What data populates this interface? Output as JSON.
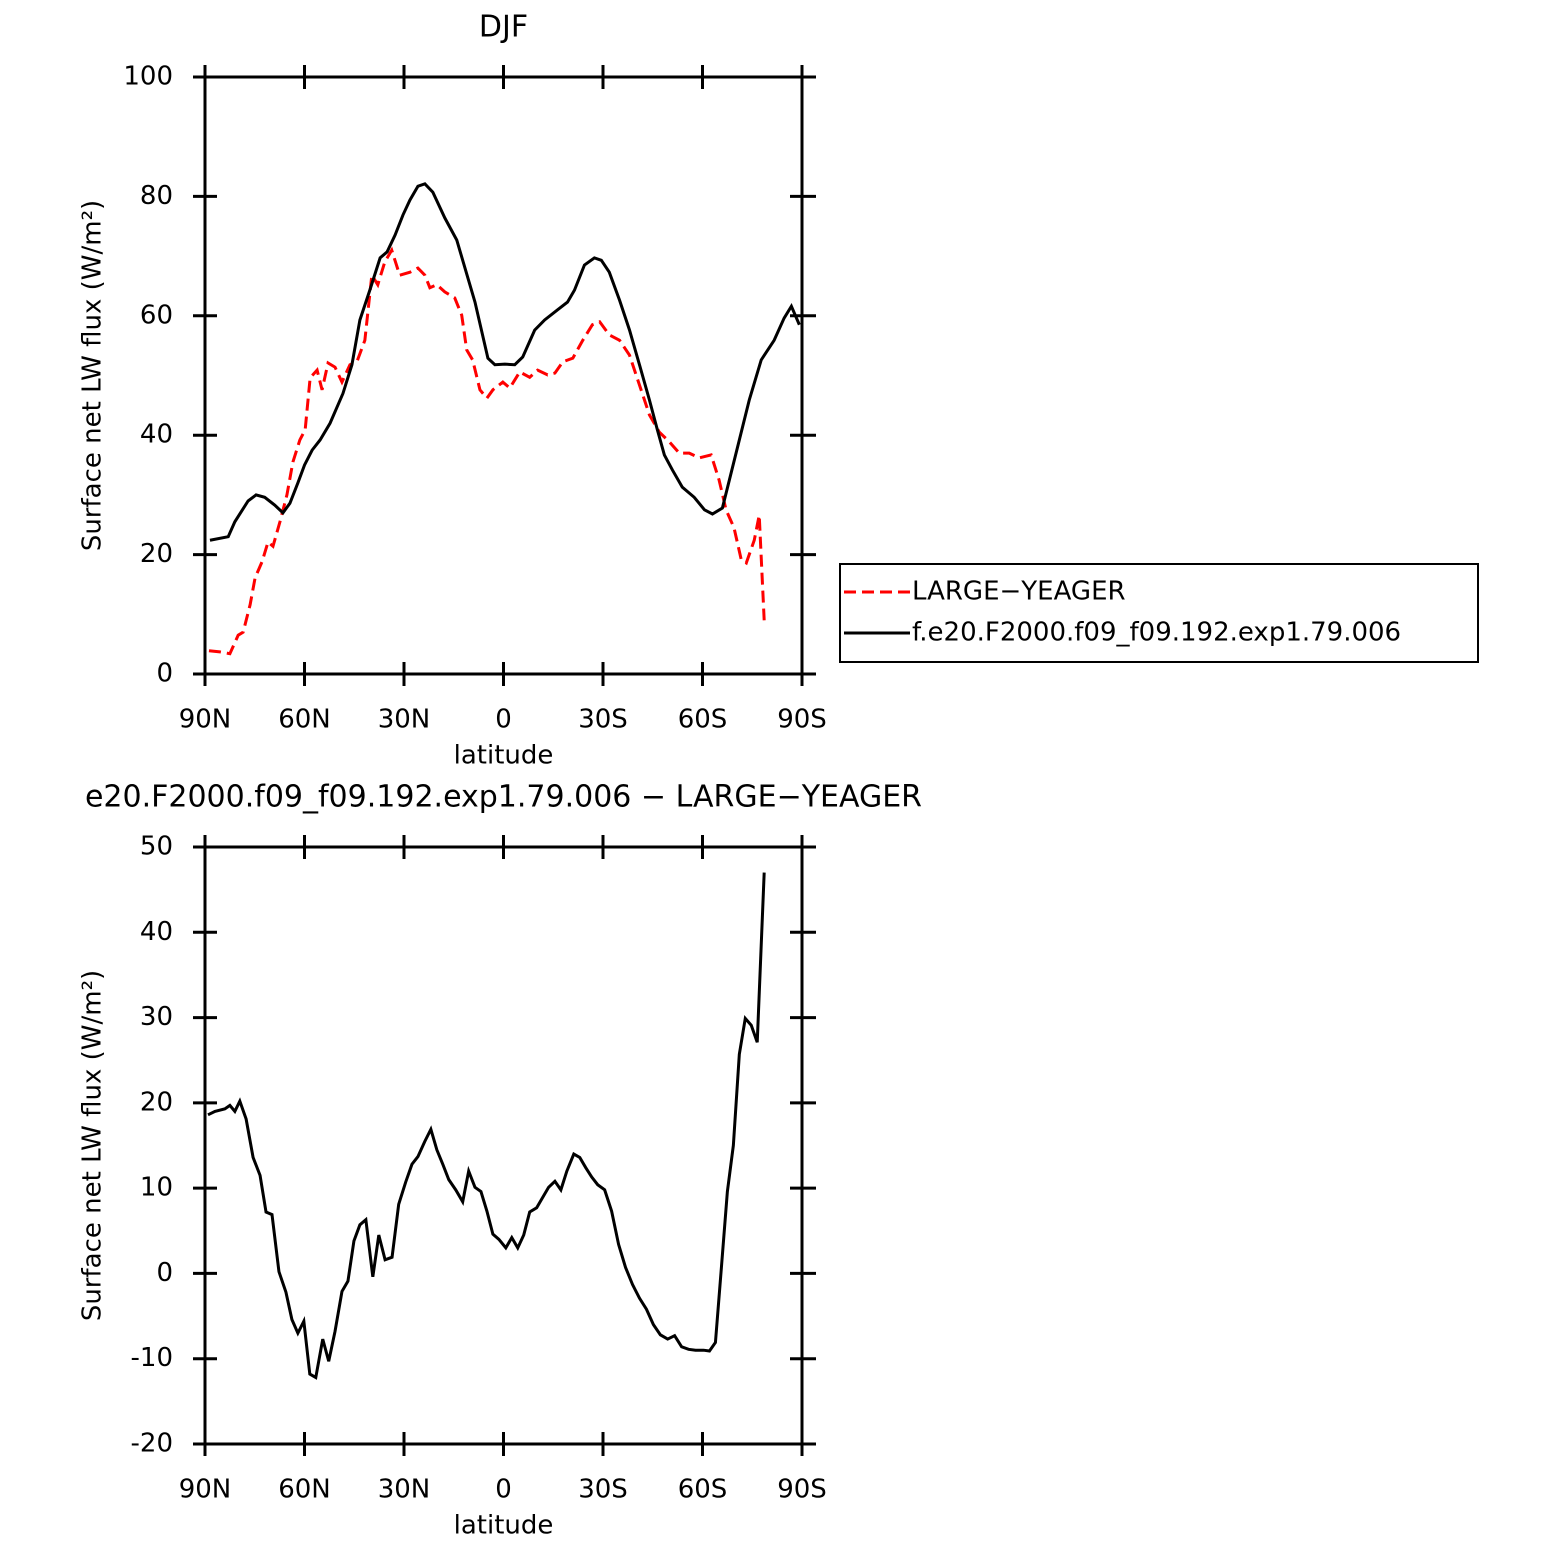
{
  "chart_data": [
    {
      "type": "line",
      "title": "DJF",
      "xlabel": "latitude",
      "ylabel": "Surface net LW flux (W/m²)",
      "xlim": [
        90,
        -90
      ],
      "xticks": [
        {
          "value": 90,
          "label": "90N"
        },
        {
          "value": 60,
          "label": "60N"
        },
        {
          "value": 30,
          "label": "30N"
        },
        0,
        {
          "value": -30,
          "label": "30S"
        },
        {
          "value": -60,
          "label": "60S"
        },
        {
          "value": -90,
          "label": "90S"
        }
      ],
      "ylim": [
        0,
        100
      ],
      "yticks": [
        0,
        20,
        40,
        60,
        80,
        100
      ],
      "legend": "right",
      "series": [
        {
          "name": "LARGE−YEAGER",
          "color": "#ff0000",
          "linestyle": "dashed",
          "x": [
            88.8,
            85.5,
            82.5,
            80,
            78.5,
            76.4,
            74.9,
            72.8,
            71,
            69.5,
            67.4,
            65.3,
            63.5,
            61.4,
            59.8,
            58.3,
            56.2,
            54.7,
            52.9,
            50.8,
            48.7,
            46.3,
            44.2,
            41.8,
            39.7,
            37.9,
            35.8,
            33.7,
            31.3,
            28.2,
            25.8,
            23.7,
            22.2,
            20.1,
            17.7,
            14.7,
            12.6,
            11.1,
            9.3,
            7.1,
            5,
            3.2,
            0.2,
            -1.9,
            -4.9,
            -7.9,
            -10.3,
            -13.3,
            -15.5,
            -17.9,
            -20.9,
            -23.9,
            -26.8,
            -29,
            -31.9,
            -35,
            -38,
            -41,
            -44,
            -47,
            -50,
            -53,
            -56,
            -59,
            -62.6,
            -65,
            -67.1,
            -69.5,
            -71.7,
            -73.2,
            -75.6,
            -77.1,
            -78.6
          ],
          "values": [
            3.9,
            3.7,
            3.4,
            6.5,
            7,
            11.6,
            16.1,
            18.8,
            22.1,
            21.4,
            25.5,
            30,
            35.5,
            39.2,
            40.9,
            49.6,
            50.9,
            47.6,
            52.1,
            51.4,
            48.9,
            51.8,
            52.3,
            55.9,
            66.8,
            65.2,
            69,
            71,
            66.8,
            67.3,
            68,
            66.8,
            64.7,
            65.2,
            64,
            63,
            60.1,
            54.3,
            52.6,
            47.6,
            46.2,
            47.6,
            48.9,
            47.9,
            50.6,
            49.7,
            50.9,
            50.1,
            50.4,
            52.3,
            52.9,
            55.9,
            58.5,
            59,
            56.8,
            55.9,
            53.4,
            48.4,
            43.4,
            40.5,
            38.9,
            37,
            37,
            36.2,
            36.7,
            32.5,
            27.5,
            24.5,
            19.1,
            18.6,
            22.4,
            26.6,
            9
          ]
        },
        {
          "name": "f.e20.F2000.f09_f09.192.exp1.79.006",
          "color": "#000000",
          "linestyle": "solid",
          "x": [
            88.5,
            83,
            81,
            77,
            74.6,
            72,
            69,
            66.5,
            64.4,
            62,
            60,
            57.7,
            55.3,
            52.3,
            48.4,
            45.7,
            43.3,
            40.3,
            37.2,
            35.1,
            32.7,
            30.3,
            28.2,
            25.8,
            23.7,
            21.3,
            17.7,
            14.1,
            8.6,
            4.7,
            2.6,
            -0.4,
            -3.4,
            -5.8,
            -9.4,
            -12.4,
            -16.3,
            -19.3,
            -21.4,
            -24.4,
            -27.4,
            -29.5,
            -31.9,
            -35,
            -38,
            -41,
            -44,
            -46.4,
            -48.5,
            -50.9,
            -53.9,
            -57.5,
            -60.6,
            -63,
            -66,
            -68.1,
            -71.1,
            -74.1,
            -77.7,
            -81.6,
            -84.6,
            -86.8,
            -89.2
          ],
          "values": [
            22.4,
            23,
            25.5,
            29,
            30,
            29.6,
            28.3,
            27,
            28.6,
            32,
            35,
            37.5,
            39.2,
            42,
            47,
            51.8,
            59.3,
            64.3,
            69.7,
            70.7,
            73.5,
            76.9,
            79.4,
            81.7,
            82.1,
            80.7,
            76.4,
            72.7,
            62.3,
            52.9,
            51.8,
            51.9,
            51.8,
            53.1,
            57.6,
            59.3,
            61,
            62.3,
            64.3,
            68.5,
            69.7,
            69.3,
            67.3,
            62.6,
            57.6,
            51.8,
            45.9,
            40.9,
            36.7,
            34.2,
            31.3,
            29.6,
            27.5,
            26.8,
            27.8,
            32.5,
            39.2,
            45.9,
            52.6,
            55.9,
            59.6,
            61.6,
            58.5
          ]
        }
      ]
    },
    {
      "type": "line",
      "title": "e20.F2000.f09_f09.192.exp1.79.006 − LARGE−YEAGER",
      "xlabel": "latitude",
      "ylabel": "Surface net LW flux (W/m²)",
      "xlim": [
        90,
        -90
      ],
      "xticks": [
        {
          "value": 90,
          "label": "90N"
        },
        {
          "value": 60,
          "label": "60N"
        },
        {
          "value": 30,
          "label": "30N"
        },
        0,
        {
          "value": -30,
          "label": "30S"
        },
        {
          "value": -60,
          "label": "60S"
        },
        {
          "value": -90,
          "label": "90S"
        }
      ],
      "ylim": [
        -20,
        50
      ],
      "yticks": [
        -20,
        -10,
        0,
        10,
        20,
        30,
        40,
        50
      ],
      "series": [
        {
          "color": "#000000",
          "linestyle": "solid",
          "x": [
            89.1,
            87,
            84,
            82.5,
            81,
            79.5,
            77.6,
            75.5,
            73.4,
            71.6,
            69.8,
            67.7,
            65.6,
            63.8,
            62,
            60.2,
            58.4,
            56.6,
            54.5,
            52.7,
            50.8,
            48.7,
            46.9,
            45.1,
            43.3,
            41.5,
            39.4,
            37.6,
            35.7,
            33.6,
            31.6,
            29.5,
            27.6,
            25.8,
            23.7,
            21.9,
            20.1,
            18.3,
            16.5,
            14.4,
            12.3,
            10.5,
            8.6,
            6.8,
            5,
            3.2,
            1.4,
            -0.7,
            -2.5,
            -4.3,
            -6.1,
            -7.9,
            -10,
            -11.8,
            -13.6,
            -15.5,
            -17.3,
            -19.1,
            -21.2,
            -23,
            -24.8,
            -26.6,
            -28.4,
            -30.5,
            -32.6,
            -34.7,
            -36.8,
            -38.9,
            -41,
            -43.1,
            -45.2,
            -47.3,
            -49.5,
            -51.6,
            -53.7,
            -55.8,
            -57.9,
            -60.3,
            -62.1,
            -63.9,
            -65.7,
            -67.5,
            -69.3,
            -71.1,
            -72.9,
            -74.7,
            -76.5,
            -78.6
          ],
          "values": [
            18.6,
            19,
            19.3,
            19.7,
            19,
            20.2,
            18.1,
            13.6,
            11.5,
            7.2,
            6.9,
            0.2,
            -2.2,
            -5.4,
            -7,
            -5.6,
            -11.8,
            -12.2,
            -7.7,
            -10.3,
            -6.8,
            -2.1,
            -0.9,
            3.8,
            5.7,
            6.3,
            -0.4,
            4.5,
            1.6,
            1.9,
            8.1,
            10.7,
            12.8,
            13.7,
            15.5,
            16.9,
            14.5,
            12.8,
            11,
            9.8,
            8.4,
            12,
            10.1,
            9.6,
            7.3,
            4.6,
            4,
            3,
            4.2,
            3,
            4.5,
            7.2,
            7.7,
            8.9,
            10.1,
            10.8,
            9.8,
            12,
            14,
            13.6,
            12.4,
            11.3,
            10.4,
            9.8,
            7.3,
            3.4,
            0.7,
            -1.3,
            -2.9,
            -4.2,
            -6,
            -7.2,
            -7.7,
            -7.3,
            -8.6,
            -8.9,
            -9,
            -9,
            -9.1,
            -8.1,
            0.7,
            9.6,
            15,
            25.7,
            29.9,
            29.1,
            27.1,
            47
          ]
        }
      ]
    }
  ]
}
